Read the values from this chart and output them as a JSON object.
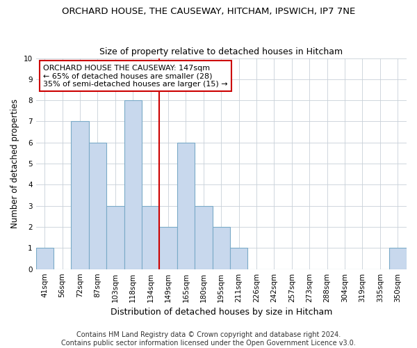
{
  "title": "ORCHARD HOUSE, THE CAUSEWAY, HITCHAM, IPSWICH, IP7 7NE",
  "subtitle": "Size of property relative to detached houses in Hitcham",
  "xlabel": "Distribution of detached houses by size in Hitcham",
  "ylabel": "Number of detached properties",
  "categories": [
    "41sqm",
    "56sqm",
    "72sqm",
    "87sqm",
    "103sqm",
    "118sqm",
    "134sqm",
    "149sqm",
    "165sqm",
    "180sqm",
    "195sqm",
    "211sqm",
    "226sqm",
    "242sqm",
    "257sqm",
    "273sqm",
    "288sqm",
    "304sqm",
    "319sqm",
    "335sqm",
    "350sqm"
  ],
  "values": [
    1,
    0,
    7,
    6,
    3,
    8,
    3,
    2,
    6,
    3,
    2,
    1,
    0,
    0,
    0,
    0,
    0,
    0,
    0,
    0,
    1
  ],
  "bar_color": "#c8d8ed",
  "bar_edge_color": "#7aaac8",
  "highlight_line_color": "#cc0000",
  "highlight_line_index": 7,
  "annotation_text": "ORCHARD HOUSE THE CAUSEWAY: 147sqm\n← 65% of detached houses are smaller (28)\n35% of semi-detached houses are larger (15) →",
  "annotation_box_color": "#ffffff",
  "annotation_box_edge_color": "#cc0000",
  "ylim": [
    0,
    10
  ],
  "yticks": [
    0,
    1,
    2,
    3,
    4,
    5,
    6,
    7,
    8,
    9,
    10
  ],
  "footer_text": "Contains HM Land Registry data © Crown copyright and database right 2024.\nContains public sector information licensed under the Open Government Licence v3.0.",
  "bg_color": "#ffffff",
  "grid_color": "#c8d0d8",
  "title_fontsize": 9.5,
  "subtitle_fontsize": 9,
  "xlabel_fontsize": 9,
  "ylabel_fontsize": 8.5,
  "tick_fontsize": 7.5,
  "annotation_fontsize": 8,
  "footer_fontsize": 7
}
